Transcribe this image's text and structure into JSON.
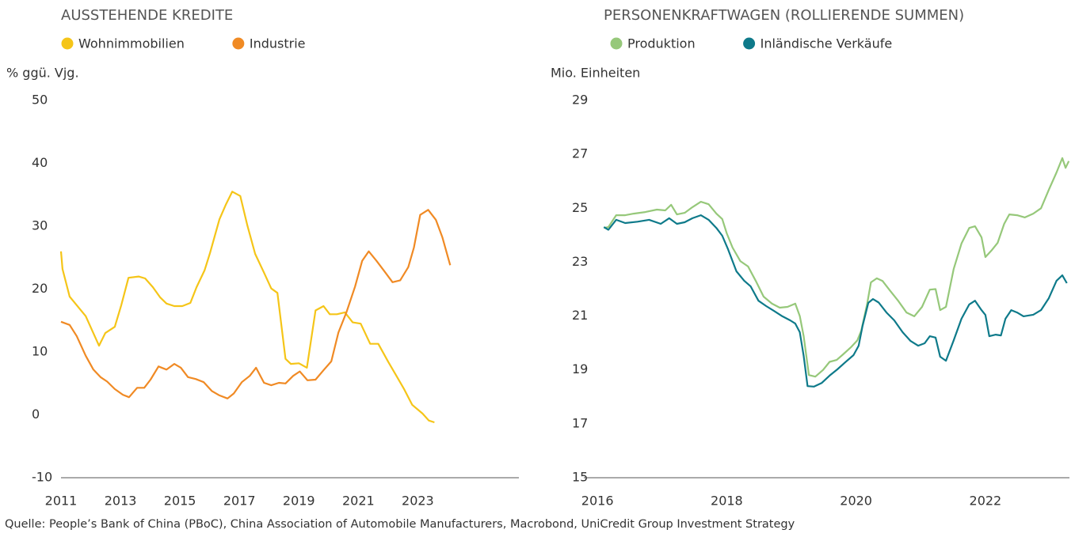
{
  "chart_data": [
    {
      "type": "line",
      "title": "AUSSTEHENDE KREDITE",
      "y_label": "% ggü. Vjg.",
      "xlim": [
        2011,
        2026.4
      ],
      "xticks": [
        2011,
        2013,
        2015,
        2017,
        2019,
        2021,
        2023
      ],
      "ylim": [
        -10,
        50
      ],
      "yticks": [
        -10,
        0,
        10,
        20,
        30,
        40,
        50
      ],
      "grid": false,
      "series": [
        {
          "name": "Wohnimmobilien",
          "color": "#f5c518",
          "x": [
            2011.0,
            2011.05,
            2011.29,
            2011.83,
            2012.28,
            2012.49,
            2012.81,
            2013.03,
            2013.27,
            2013.61,
            2013.83,
            2014.09,
            2014.33,
            2014.55,
            2014.81,
            2015.08,
            2015.35,
            2015.56,
            2015.83,
            2016.01,
            2016.33,
            2016.55,
            2016.76,
            2017.03,
            2017.27,
            2017.53,
            2017.83,
            2018.07,
            2018.28,
            2018.55,
            2018.73,
            2019.0,
            2019.27,
            2019.56,
            2019.83,
            2020.04,
            2020.28,
            2020.55,
            2020.81,
            2021.08,
            2021.4,
            2021.67,
            2022.01,
            2022.28,
            2022.55,
            2022.81,
            2023.16,
            2023.37,
            2023.56
          ],
          "values": [
            26,
            23.2,
            18.8,
            15.7,
            11,
            13,
            14,
            17.5,
            21.8,
            22,
            21.7,
            20.3,
            18.7,
            17.7,
            17.3,
            17.3,
            17.8,
            20.3,
            23,
            25.7,
            31.1,
            33.5,
            35.5,
            34.8,
            30.1,
            25.6,
            22.6,
            20.1,
            19.4,
            8.9,
            8.1,
            8.2,
            7.5,
            16.6,
            17.3,
            16,
            16,
            16.3,
            14.7,
            14.5,
            11.3,
            11.3,
            8.4,
            6.2,
            4,
            1.6,
            0.2,
            -0.9,
            -1.2
          ]
        },
        {
          "name": "Industrie",
          "color": "#f08a24",
          "x": [
            2011.0,
            2011.29,
            2011.53,
            2011.83,
            2012.09,
            2012.33,
            2012.55,
            2012.81,
            2013.08,
            2013.29,
            2013.56,
            2013.8,
            2014.01,
            2014.28,
            2014.55,
            2014.81,
            2015.03,
            2015.27,
            2015.53,
            2015.8,
            2016.07,
            2016.33,
            2016.6,
            2016.81,
            2017.08,
            2017.35,
            2017.56,
            2017.83,
            2018.07,
            2018.33,
            2018.55,
            2018.81,
            2019.03,
            2019.29,
            2019.56,
            2019.83,
            2020.09,
            2020.33,
            2020.6,
            2020.89,
            2021.13,
            2021.35,
            2021.61,
            2021.88,
            2022.15,
            2022.41,
            2022.68,
            2022.87,
            2023.08,
            2023.35,
            2023.61,
            2023.83,
            2024.09
          ],
          "values": [
            14.8,
            14.3,
            12.5,
            9.4,
            7.2,
            6,
            5.3,
            4.1,
            3.2,
            2.8,
            4.3,
            4.3,
            5.6,
            7.7,
            7.2,
            8.1,
            7.5,
            6,
            5.7,
            5.2,
            3.8,
            3.1,
            2.6,
            3.4,
            5.2,
            6.2,
            7.5,
            5.1,
            4.7,
            5.1,
            5,
            6.2,
            6.9,
            5.5,
            5.6,
            7.1,
            8.5,
            13.1,
            16.3,
            20.4,
            24.5,
            26,
            24.5,
            22.8,
            21.1,
            21.4,
            23.5,
            26.6,
            31.8,
            32.6,
            31,
            28.2,
            23.8
          ]
        }
      ]
    },
    {
      "type": "line",
      "title": "PERSONENKRAFTWAGEN (ROLLIERENDE SUMMEN)",
      "y_label": "Mio. Einheiten",
      "xlim": [
        2015.79,
        2023.3
      ],
      "xticks": [
        2016,
        2018,
        2020,
        2022
      ],
      "ylim": [
        15,
        29
      ],
      "yticks": [
        15,
        17,
        19,
        21,
        23,
        25,
        27,
        29
      ],
      "grid": false,
      "series": [
        {
          "name": "Produktion",
          "color": "#96c87a",
          "x": [
            2016.1,
            2016.17,
            2016.29,
            2016.43,
            2016.56,
            2016.74,
            2016.92,
            2017.05,
            2017.14,
            2017.23,
            2017.35,
            2017.47,
            2017.6,
            2017.72,
            2017.84,
            2017.93,
            2018.0,
            2018.09,
            2018.21,
            2018.33,
            2018.45,
            2018.57,
            2018.7,
            2018.82,
            2018.94,
            2019.06,
            2019.13,
            2019.19,
            2019.27,
            2019.37,
            2019.49,
            2019.59,
            2019.7,
            2019.8,
            2019.92,
            2020.02,
            2020.08,
            2020.17,
            2020.23,
            2020.32,
            2020.41,
            2020.53,
            2020.65,
            2020.78,
            2020.9,
            2021.02,
            2021.14,
            2021.23,
            2021.3,
            2021.39,
            2021.51,
            2021.63,
            2021.75,
            2021.84,
            2021.94,
            2022.0,
            2022.1,
            2022.19,
            2022.29,
            2022.37,
            2022.49,
            2022.61,
            2022.74,
            2022.86,
            2022.98,
            2023.1,
            2023.19,
            2023.24,
            2023.29
          ],
          "values": [
            24.27,
            24.3,
            24.74,
            24.74,
            24.8,
            24.86,
            24.95,
            24.92,
            25.13,
            24.77,
            24.83,
            25.04,
            25.24,
            25.15,
            24.8,
            24.6,
            24.07,
            23.54,
            23.04,
            22.84,
            22.3,
            21.72,
            21.46,
            21.31,
            21.34,
            21.46,
            21.0,
            20.25,
            18.81,
            18.75,
            19.0,
            19.3,
            19.37,
            19.58,
            19.84,
            20.1,
            20.46,
            21.43,
            22.25,
            22.4,
            22.3,
            21.93,
            21.57,
            21.13,
            20.99,
            21.34,
            21.98,
            22.0,
            21.22,
            21.34,
            22.75,
            23.69,
            24.27,
            24.33,
            23.92,
            23.19,
            23.45,
            23.72,
            24.42,
            24.77,
            24.74,
            24.66,
            24.8,
            25.0,
            25.68,
            26.33,
            26.86,
            26.5,
            26.75
          ]
        },
        {
          "name": "Inländische Verkäufe",
          "color": "#0e7a8a",
          "x": [
            2016.1,
            2016.17,
            2016.29,
            2016.43,
            2016.62,
            2016.8,
            2016.98,
            2017.11,
            2017.23,
            2017.35,
            2017.47,
            2017.6,
            2017.72,
            2017.84,
            2017.93,
            2018.02,
            2018.15,
            2018.27,
            2018.37,
            2018.49,
            2018.61,
            2018.73,
            2018.86,
            2018.98,
            2019.06,
            2019.13,
            2019.19,
            2019.25,
            2019.35,
            2019.47,
            2019.59,
            2019.71,
            2019.83,
            2019.96,
            2020.04,
            2020.1,
            2020.19,
            2020.26,
            2020.35,
            2020.47,
            2020.59,
            2020.72,
            2020.84,
            2020.96,
            2021.06,
            2021.14,
            2021.23,
            2021.3,
            2021.39,
            2021.51,
            2021.63,
            2021.75,
            2021.84,
            2021.94,
            2022.0,
            2022.06,
            2022.16,
            2022.24,
            2022.31,
            2022.4,
            2022.49,
            2022.59,
            2022.74,
            2022.86,
            2022.98,
            2023.1,
            2023.19,
            2023.26
          ],
          "values": [
            24.3,
            24.2,
            24.57,
            24.45,
            24.5,
            24.57,
            24.42,
            24.63,
            24.42,
            24.48,
            24.63,
            24.74,
            24.57,
            24.27,
            23.98,
            23.48,
            22.66,
            22.31,
            22.1,
            21.57,
            21.37,
            21.19,
            20.99,
            20.84,
            20.72,
            20.4,
            19.52,
            18.4,
            18.38,
            18.52,
            18.79,
            19.02,
            19.28,
            19.55,
            19.9,
            20.63,
            21.49,
            21.63,
            21.5,
            21.13,
            20.84,
            20.4,
            20.08,
            19.9,
            19.99,
            20.25,
            20.2,
            19.49,
            19.34,
            20.1,
            20.9,
            21.43,
            21.57,
            21.22,
            21.04,
            20.25,
            20.31,
            20.28,
            20.9,
            21.22,
            21.13,
            20.99,
            21.05,
            21.22,
            21.66,
            22.31,
            22.51,
            22.22
          ]
        }
      ]
    }
  ],
  "source": "Quelle: People’s Bank of China (PBoC), China Association of Automobile Manufacturers, Macrobond, UniCredit Group Investment Strategy"
}
